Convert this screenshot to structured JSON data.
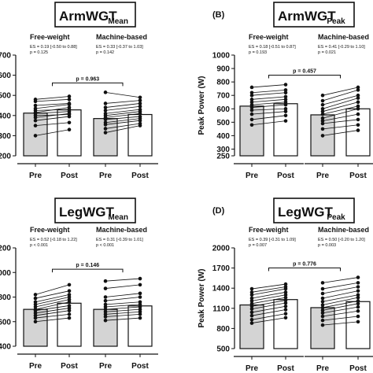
{
  "chart_data": [
    {
      "type": "bar",
      "panel_letter": "",
      "title_main": "ArmWGT",
      "title_sub": "Mean",
      "ylabel": "",
      "ylim": [
        200,
        700
      ],
      "yticks": [
        200,
        300,
        400,
        500,
        600,
        700
      ],
      "categories": [
        "Pre",
        "Post",
        "Pre",
        "Post"
      ],
      "groups": [
        {
          "name": "Free-weight",
          "es": "ES = 0.19 [-0.50 to 0.88]",
          "p": "p = 0.125"
        },
        {
          "name": "Machine-based",
          "es": "ES = 0.33 [-0.37 to 1.03]",
          "p": "p = 0.142"
        }
      ],
      "comparison_p": "p = 0.963",
      "bar_values": [
        412,
        428,
        385,
        405
      ],
      "paired_points": [
        [
          [
            300,
            330
          ],
          [
            350,
            365
          ],
          [
            375,
            395
          ],
          [
            390,
            410
          ],
          [
            400,
            405
          ],
          [
            410,
            420
          ],
          [
            415,
            440
          ],
          [
            425,
            430
          ],
          [
            435,
            455
          ],
          [
            450,
            460
          ],
          [
            470,
            480
          ],
          [
            480,
            495
          ]
        ],
        [
          [
            315,
            350
          ],
          [
            335,
            360
          ],
          [
            355,
            375
          ],
          [
            365,
            385
          ],
          [
            380,
            395
          ],
          [
            390,
            410
          ],
          [
            400,
            420
          ],
          [
            410,
            430
          ],
          [
            425,
            445
          ],
          [
            440,
            460
          ],
          [
            460,
            475
          ],
          [
            515,
            490
          ]
        ]
      ]
    },
    {
      "type": "bar",
      "panel_letter": "(B)",
      "title_main": "ArmWGT",
      "title_sub": "Peak",
      "ylabel": "Peak Power (W)",
      "ylim": [
        250,
        1000
      ],
      "yticks": [
        250,
        300,
        400,
        500,
        600,
        700,
        800,
        900,
        1000
      ],
      "categories": [
        "Pre",
        "Post",
        "Pre",
        "Post"
      ],
      "groups": [
        {
          "name": "Free-weight",
          "es": "ES = 0.18 [-0.51 to 0.87]",
          "p": "p = 0.193"
        },
        {
          "name": "Machine-based",
          "es": "ES = 0.41 [-0.29 to 1.10]",
          "p": "p = 0.021"
        }
      ],
      "comparison_p": "p = 0.457",
      "bar_values": [
        620,
        638,
        555,
        600
      ],
      "paired_points": [
        [
          [
            480,
            510
          ],
          [
            520,
            550
          ],
          [
            560,
            580
          ],
          [
            590,
            600
          ],
          [
            610,
            630
          ],
          [
            630,
            650
          ],
          [
            650,
            670
          ],
          [
            670,
            690
          ],
          [
            700,
            720
          ],
          [
            720,
            740
          ],
          [
            760,
            780
          ]
        ],
        [
          [
            400,
            440
          ],
          [
            450,
            480
          ],
          [
            490,
            520
          ],
          [
            510,
            560
          ],
          [
            530,
            600
          ],
          [
            560,
            620
          ],
          [
            580,
            650
          ],
          [
            600,
            680
          ],
          [
            630,
            700
          ],
          [
            660,
            740
          ],
          [
            700,
            760
          ]
        ]
      ]
    },
    {
      "type": "bar",
      "panel_letter": "",
      "title_main": "LegWGT",
      "title_sub": "Mean",
      "ylabel": "",
      "ylim": [
        400,
        1200
      ],
      "yticks": [
        400,
        600,
        800,
        1000,
        1200
      ],
      "categories": [
        "Pre",
        "Post",
        "Pre",
        "Post"
      ],
      "groups": [
        {
          "name": "Free-weight",
          "es": "ES = 0.52 [-0.18 to 1.22]",
          "p": "p < 0.001"
        },
        {
          "name": "Machine-based",
          "es": "ES = 0.31 [-0.39 to 1.01]",
          "p": "p < 0.001"
        }
      ],
      "comparison_p": "p = 0.146",
      "bar_values": [
        700,
        750,
        700,
        728
      ],
      "paired_points": [
        [
          [
            600,
            630
          ],
          [
            630,
            660
          ],
          [
            650,
            690
          ],
          [
            670,
            710
          ],
          [
            690,
            730
          ],
          [
            700,
            760
          ],
          [
            720,
            780
          ],
          [
            740,
            800
          ],
          [
            760,
            820
          ],
          [
            790,
            850
          ],
          [
            820,
            900
          ]
        ],
        [
          [
            610,
            630
          ],
          [
            640,
            660
          ],
          [
            660,
            680
          ],
          [
            680,
            700
          ],
          [
            700,
            720
          ],
          [
            720,
            740
          ],
          [
            740,
            760
          ],
          [
            770,
            800
          ],
          [
            800,
            830
          ],
          [
            870,
            900
          ],
          [
            930,
            950
          ]
        ]
      ]
    },
    {
      "type": "bar",
      "panel_letter": "(D)",
      "title_main": "LegWGT",
      "title_sub": "Peak",
      "ylabel": "Peak Power (W)",
      "ylim": [
        500,
        2000
      ],
      "yticks": [
        500,
        800,
        1100,
        1400,
        1700,
        2000
      ],
      "categories": [
        "Pre",
        "Post",
        "Pre",
        "Post"
      ],
      "groups": [
        {
          "name": "Free-weight",
          "es": "ES = 0.39 [-0.31 to 1.09]",
          "p": "p = 0.007"
        },
        {
          "name": "Machine-based",
          "es": "ES = 0.50 [-0.20 to 1.20]",
          "p": "p = 0.003"
        }
      ],
      "comparison_p": "p = 0.776",
      "bar_values": [
        1150,
        1230,
        1110,
        1200
      ],
      "paired_points": [
        [
          [
            880,
            960
          ],
          [
            930,
            1020
          ],
          [
            990,
            1080
          ],
          [
            1040,
            1130
          ],
          [
            1090,
            1180
          ],
          [
            1130,
            1220
          ],
          [
            1170,
            1260
          ],
          [
            1210,
            1300
          ],
          [
            1250,
            1340
          ],
          [
            1300,
            1390
          ],
          [
            1340,
            1420
          ],
          [
            1390,
            1460
          ]
        ],
        [
          [
            850,
            900
          ],
          [
            920,
            980
          ],
          [
            980,
            1060
          ],
          [
            1030,
            1120
          ],
          [
            1070,
            1170
          ],
          [
            1110,
            1210
          ],
          [
            1150,
            1260
          ],
          [
            1200,
            1300
          ],
          [
            1250,
            1360
          ],
          [
            1320,
            1420
          ],
          [
            1390,
            1480
          ],
          [
            1480,
            1560
          ]
        ]
      ]
    }
  ]
}
